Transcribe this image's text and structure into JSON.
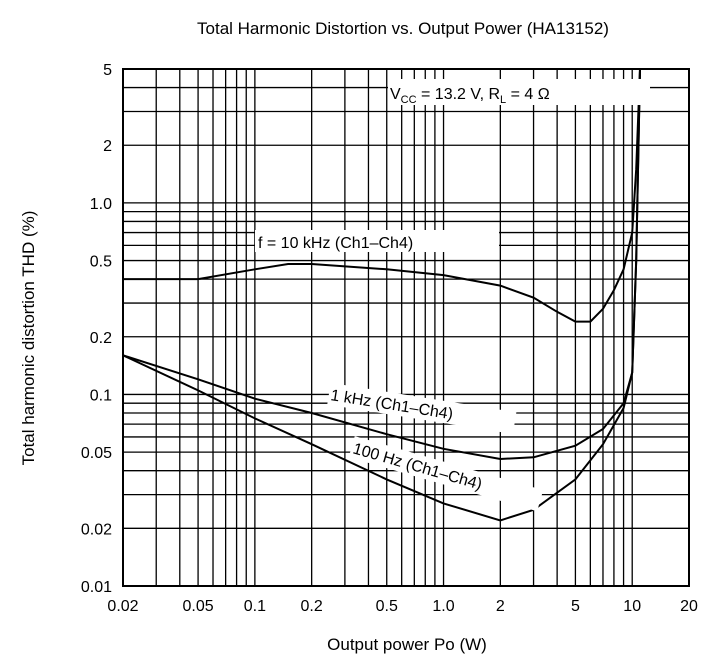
{
  "chart_data": {
    "type": "line",
    "title": "Total Harmonic Distortion vs. Output Power (HA13152)",
    "xlabel": "Output power  Po (W)",
    "ylabel": "Total harmonic distortion  THD (%)",
    "x_scale": "log",
    "y_scale": "log",
    "xlim": [
      0.02,
      20
    ],
    "ylim": [
      0.01,
      5
    ],
    "grid": true,
    "x_ticks": [
      0.02,
      0.05,
      0.1,
      0.2,
      0.5,
      1.0,
      2,
      5,
      10,
      20
    ],
    "x_tick_labels": [
      "0.02",
      "0.05",
      "0.1",
      "0.2",
      "0.5",
      "1.0",
      "2",
      "5",
      "10",
      "20"
    ],
    "y_ticks": [
      0.01,
      0.02,
      0.05,
      0.1,
      0.2,
      0.5,
      1.0,
      2,
      5
    ],
    "y_tick_labels": [
      "0.01",
      "0.02",
      "0.05",
      "0.1",
      "0.2",
      "0.5",
      "1.0",
      "2",
      "5"
    ],
    "condition_parts": {
      "v": "V",
      "v_sub": "CC",
      "v_rest": " = 13.2 V, R",
      "r_sub": "L",
      "r_rest": " = 4 Ω"
    },
    "series": [
      {
        "name": "f = 10 kHz (Ch1–Ch4)",
        "x": [
          0.02,
          0.05,
          0.1,
          0.15,
          0.2,
          0.5,
          1.0,
          2,
          3,
          4,
          5,
          6,
          7,
          8,
          9,
          10,
          10.5,
          11
        ],
        "y": [
          0.4,
          0.4,
          0.45,
          0.48,
          0.48,
          0.45,
          0.42,
          0.37,
          0.32,
          0.27,
          0.24,
          0.24,
          0.28,
          0.35,
          0.45,
          0.7,
          1.5,
          5
        ]
      },
      {
        "name": "1 kHz (Ch1–Ch4)",
        "x": [
          0.02,
          0.05,
          0.1,
          0.2,
          0.5,
          1.0,
          2,
          3,
          5,
          7,
          9,
          10,
          10.5,
          11
        ],
        "y": [
          0.16,
          0.12,
          0.095,
          0.08,
          0.062,
          0.052,
          0.046,
          0.047,
          0.054,
          0.066,
          0.09,
          0.13,
          0.5,
          5
        ]
      },
      {
        "name": "100 Hz (Ch1–Ch4)",
        "x": [
          0.02,
          0.05,
          0.1,
          0.2,
          0.5,
          1.0,
          2,
          3,
          5,
          7,
          9,
          10,
          10.5,
          11
        ],
        "y": [
          0.16,
          0.105,
          0.075,
          0.055,
          0.036,
          0.027,
          0.022,
          0.025,
          0.036,
          0.055,
          0.085,
          0.13,
          0.5,
          5
        ]
      }
    ]
  }
}
